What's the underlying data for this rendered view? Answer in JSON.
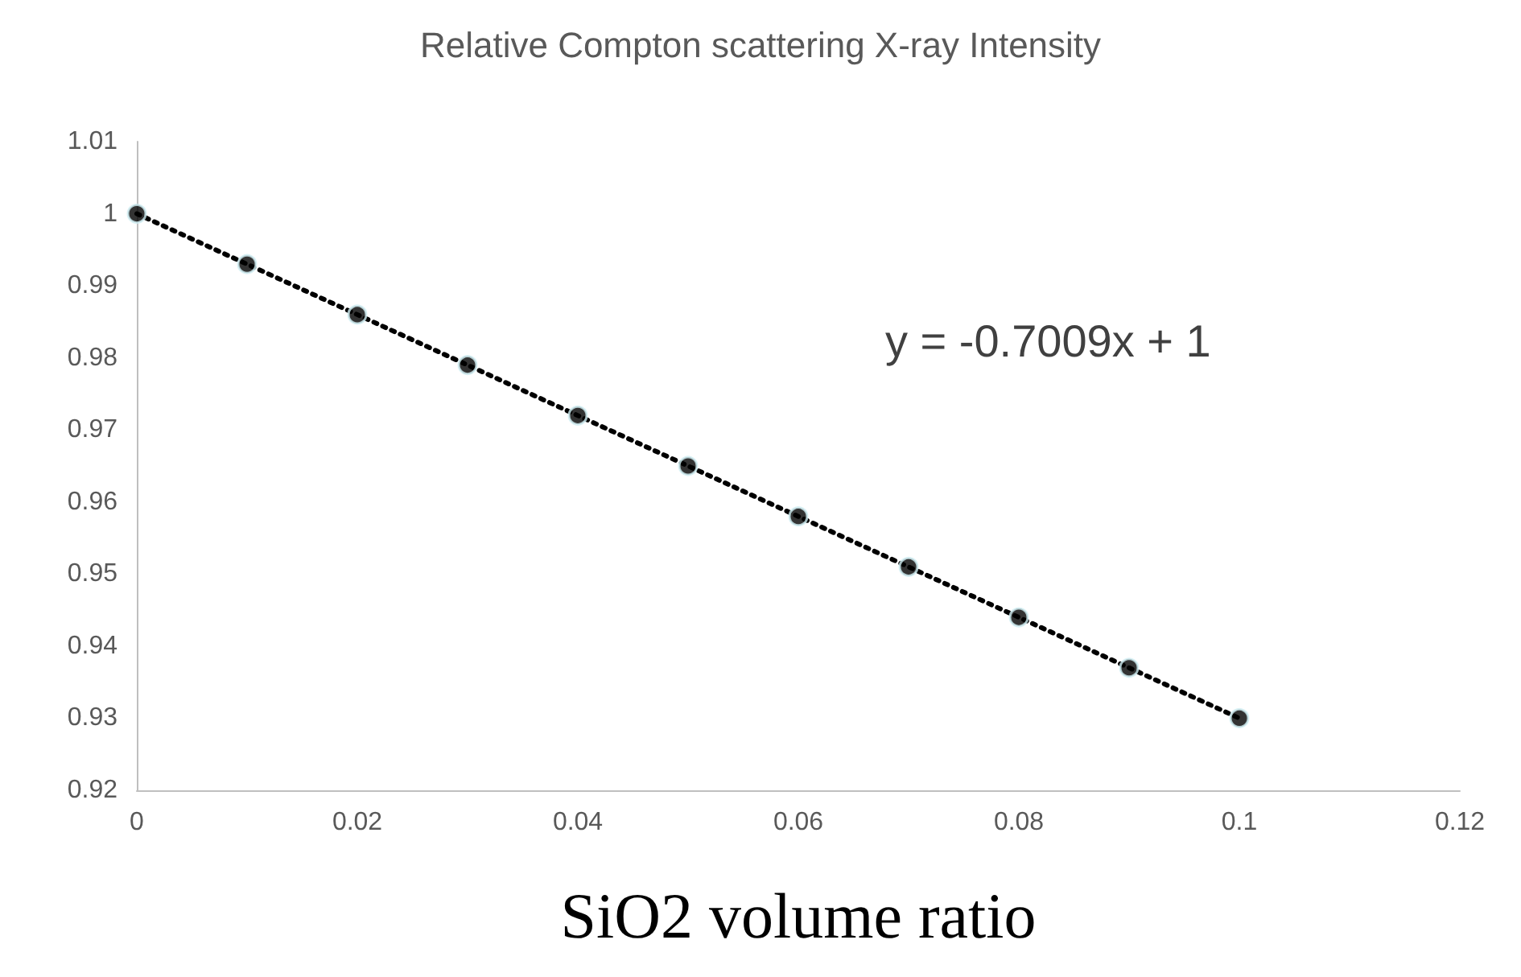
{
  "chart_data": {
    "type": "scatter",
    "title": "Relative Compton scattering X-ray Intensity",
    "xlabel": "SiO2 volume ratio",
    "x": [
      0,
      0.01,
      0.02,
      0.03,
      0.04,
      0.05,
      0.06,
      0.07,
      0.08,
      0.09,
      0.1
    ],
    "series": [
      {
        "color": "#000000",
        "marker": "circle",
        "values": [
          1,
          0.993,
          0.986,
          0.979,
          0.972,
          0.965,
          0.958,
          0.951,
          0.944,
          0.937,
          0.93
        ]
      },
      {
        "type": "line",
        "color": "#000000",
        "marker": "none",
        "line_style": "dotted",
        "x": [
          0,
          0.1
        ],
        "values": [
          1,
          0.93
        ]
      }
    ],
    "annotations": [
      "y = -0.7009x + 1"
    ],
    "xlim": [
      0,
      0.12
    ],
    "xticks": [
      0,
      0.02,
      0.04,
      0.06,
      0.08,
      0.1,
      0.12
    ],
    "ylim": [
      0.92,
      1.01
    ],
    "yticks": [
      0.92,
      0.93,
      0.94,
      0.95,
      0.96,
      0.97,
      0.98,
      0.99,
      1,
      1.01
    ]
  }
}
